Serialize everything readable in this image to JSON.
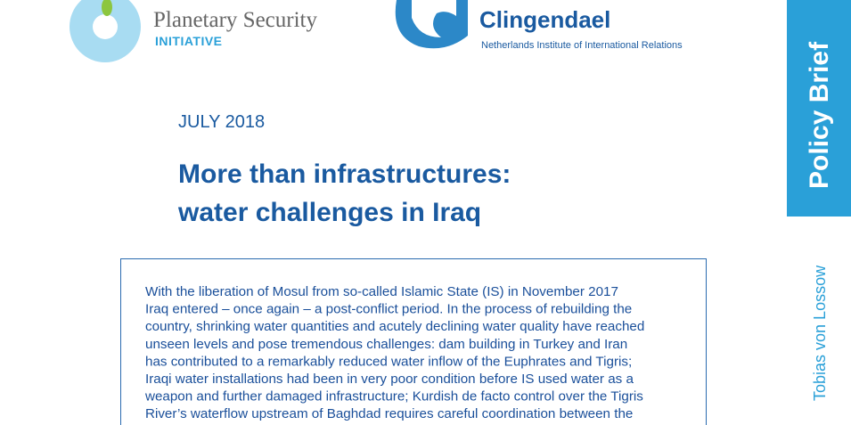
{
  "header": {
    "psi": {
      "name": "Planetary Security",
      "sub": "INITIATIVE"
    },
    "clingendael": {
      "name": "Clingendael",
      "sub": "Netherlands Institute of International Relations"
    }
  },
  "side": {
    "label": "Policy Brief",
    "author": "Tobias von Lossow"
  },
  "date": "JULY 2018",
  "title": [
    "More than infrastructures:",
    "water challenges in Iraq"
  ],
  "abstract": [
    "With the liberation of Mosul from so-called Islamic State (IS) in November 2017",
    "Iraq entered – once again – a post-conflict period. In the process of rebuilding the",
    "country, shrinking water quantities and acutely declining water quality have reached",
    "unseen levels and pose tremendous challenges: dam building in Turkey and Iran",
    "has contributed to a remarkably reduced water inflow of the Euphrates and Tigris;",
    "Iraqi water installations had been in very poor condition before IS used water as a",
    "weapon and further damaged infrastructure; Kurdish de facto control over the Tigris",
    "River’s waterflow upstream of Baghdad requires careful coordination between the"
  ]
}
